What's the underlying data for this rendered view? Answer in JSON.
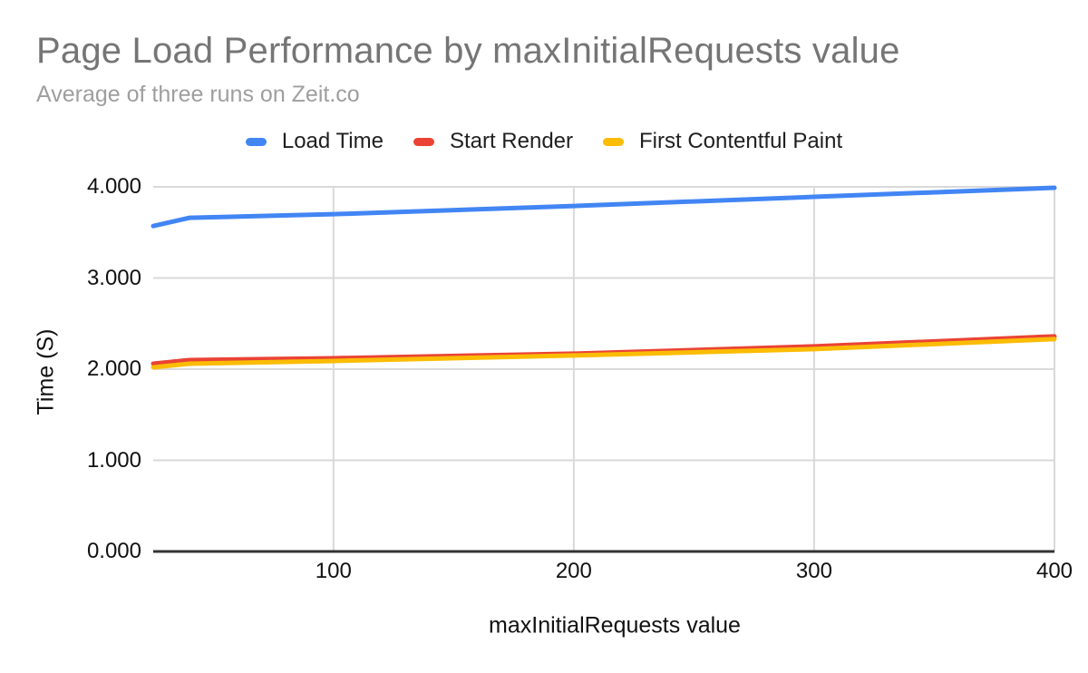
{
  "chart_data": {
    "type": "line",
    "title": "Page Load Performance by maxInitialRequests value",
    "subtitle": "Average of three runs on Zeit.co",
    "legend_position": "top",
    "grid": true,
    "x_axis": {
      "title": "maxInitialRequests value",
      "min": 25,
      "max": 400,
      "ticks": [
        {
          "value": 100,
          "label": "100"
        },
        {
          "value": 200,
          "label": "200"
        },
        {
          "value": 300,
          "label": "300"
        },
        {
          "value": 400,
          "label": "400"
        }
      ]
    },
    "y_axis": {
      "title": "Time (S)",
      "min": 0,
      "max": 4,
      "ticks": [
        {
          "value": 0,
          "label": "0.000"
        },
        {
          "value": 1,
          "label": "1.000"
        },
        {
          "value": 2,
          "label": "2.000"
        },
        {
          "value": 3,
          "label": "3.000"
        },
        {
          "value": 4,
          "label": "4.000"
        }
      ]
    },
    "series": [
      {
        "name": "Load Time",
        "color": "#4285f4",
        "points": [
          [
            25,
            3.57
          ],
          [
            40,
            3.66
          ],
          [
            100,
            3.7
          ],
          [
            200,
            3.79
          ],
          [
            300,
            3.89
          ],
          [
            400,
            3.99
          ]
        ]
      },
      {
        "name": "Start Render",
        "color": "#ea4335",
        "points": [
          [
            25,
            2.06
          ],
          [
            40,
            2.1
          ],
          [
            100,
            2.12
          ],
          [
            200,
            2.17
          ],
          [
            300,
            2.25
          ],
          [
            400,
            2.36
          ]
        ]
      },
      {
        "name": "First Contentful Paint",
        "color": "#fbbc04",
        "points": [
          [
            25,
            2.02
          ],
          [
            40,
            2.06
          ],
          [
            100,
            2.09
          ],
          [
            200,
            2.15
          ],
          [
            300,
            2.22
          ],
          [
            400,
            2.33
          ]
        ]
      }
    ],
    "colors": {
      "gridline": "#d9d9d9",
      "axis_line": "#333333",
      "title": "#757575",
      "subtitle": "#9e9e9e",
      "tick_label": "#111111",
      "legend_text": "#1f1f1f",
      "background": "#ffffff"
    }
  }
}
